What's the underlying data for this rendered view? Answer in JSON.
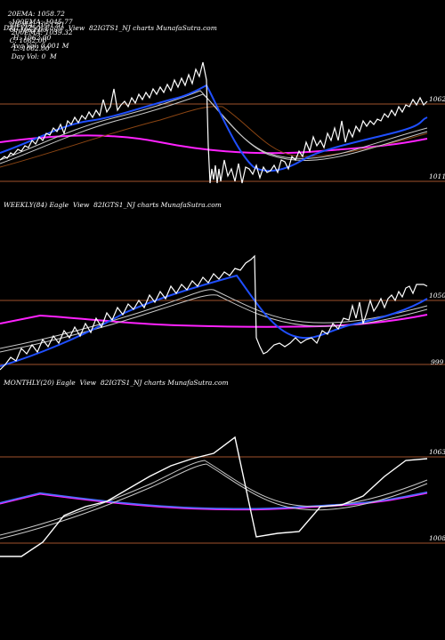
{
  "header": {
    "row1": [
      {
        "label": "20EMA:",
        "value": "1058.72"
      },
      {
        "label": "100EMA:",
        "value": "1045.77"
      },
      {
        "label": "O:",
        "value": "1062.00"
      },
      {
        "label": "H:",
        "value": "1062.00"
      },
      {
        "label": "Avg Vol:",
        "value": "0.001 M"
      }
    ],
    "row2": [
      {
        "label": "30EMA:",
        "value": "1051.81"
      },
      {
        "label": "200EMA:",
        "value": "1039.32"
      },
      {
        "label": "C:",
        "value": "1062.00"
      },
      {
        "label": "L:",
        "value": "1062.00"
      },
      {
        "label": "Day Vol:",
        "value": "0  M"
      }
    ]
  },
  "panels": [
    {
      "id": "daily",
      "label": "DAILY(250) Eagle  View  82IGTS1_NJ charts MunafaSutra.com"
    },
    {
      "id": "weekly",
      "label": "WEEKLY(84) Eagle  View  82IGTS1_NJ charts MunafaSutra.com"
    },
    {
      "id": "monthly",
      "label": "MONTHLY(20) Eagle  View  82IGTS1_NJ charts MunafaSutra.com"
    }
  ],
  "colors": {
    "price": "#ffffff",
    "ema_fast": "#1f4fff",
    "ema_slow": "#ff22ff",
    "ema_other": "#c8c8c8",
    "ema_brown": "#8b4513",
    "level": "#a0522d"
  },
  "chart_data": [
    {
      "type": "line",
      "title": "DAILY(250)",
      "price_levels": [
        1062,
        1011
      ],
      "ylim": [
        1000,
        1080
      ],
      "series": []
    },
    {
      "type": "line",
      "title": "WEEKLY(84)",
      "price_levels": [
        1050,
        999
      ],
      "ylim": [
        985,
        1085
      ],
      "series": []
    },
    {
      "type": "line",
      "title": "MONTHLY(20)",
      "price_levels": [
        1063,
        1008
      ],
      "ylim": [
        990,
        1085
      ],
      "series": []
    }
  ]
}
